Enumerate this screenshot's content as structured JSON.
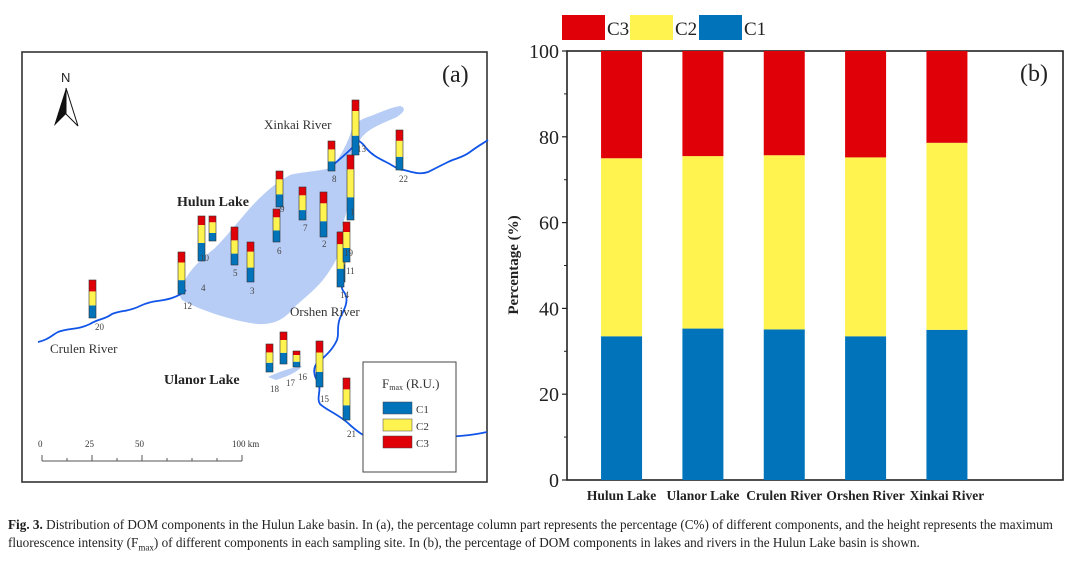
{
  "colors": {
    "C1": "#0073bb",
    "C2": "#fff34f",
    "C3": "#e00008",
    "lake": "#b8cdf6",
    "river": "#1155e8"
  },
  "map": {
    "panel_label": "(a)",
    "north_label": "N",
    "place_labels": {
      "xinkai_river": "Xinkai River",
      "hulun_lake": "Hulun Lake",
      "orshen_river": "Orshen River",
      "crulen_river": "Crulen River",
      "ulanor_lake": "Ulanor Lake"
    },
    "scale_bar": {
      "ticks": [
        "0",
        "25",
        "50",
        "100 km"
      ]
    },
    "legend": {
      "title_main": "F",
      "title_sub": "max",
      "title_unit": " (R.U.)",
      "items": [
        {
          "key": "C1",
          "label": "C1"
        },
        {
          "key": "C2",
          "label": "C2"
        },
        {
          "key": "C3",
          "label": "C3"
        }
      ]
    },
    "sites": [
      {
        "id": "1",
        "c1": 0.35,
        "c2": 0.43,
        "c3": 0.22
      },
      {
        "id": "2",
        "c1": 0.35,
        "c2": 0.4,
        "c3": 0.25
      },
      {
        "id": "3",
        "c1": 0.36,
        "c2": 0.4,
        "c3": 0.24
      },
      {
        "id": "4",
        "c1": 0.4,
        "c2": 0.4,
        "c3": 0.2
      },
      {
        "id": "5",
        "c1": 0.3,
        "c2": 0.35,
        "c3": 0.35
      },
      {
        "id": "6",
        "c1": 0.35,
        "c2": 0.4,
        "c3": 0.25
      },
      {
        "id": "7",
        "c1": 0.3,
        "c2": 0.45,
        "c3": 0.25
      },
      {
        "id": "8",
        "c1": 0.32,
        "c2": 0.4,
        "c3": 0.28
      },
      {
        "id": "9",
        "c1": 0.35,
        "c2": 0.42,
        "c3": 0.23
      },
      {
        "id": "10",
        "c1": 0.32,
        "c2": 0.43,
        "c3": 0.25
      },
      {
        "id": "11",
        "c1": 0.35,
        "c2": 0.45,
        "c3": 0.2
      },
      {
        "id": "12",
        "c1": 0.33,
        "c2": 0.42,
        "c3": 0.25
      },
      {
        "id": "13",
        "c1": 0.35,
        "c2": 0.45,
        "c3": 0.2
      },
      {
        "id": "14",
        "c1": 0.33,
        "c2": 0.45,
        "c3": 0.22
      },
      {
        "id": "15",
        "c1": 0.33,
        "c2": 0.42,
        "c3": 0.25
      },
      {
        "id": "16",
        "c1": 0.33,
        "c2": 0.42,
        "c3": 0.25
      },
      {
        "id": "17",
        "c1": 0.35,
        "c2": 0.4,
        "c3": 0.25
      },
      {
        "id": "18",
        "c1": 0.33,
        "c2": 0.37,
        "c3": 0.3
      },
      {
        "id": "19",
        "c1": 0.35,
        "c2": 0.4,
        "c3": 0.25
      },
      {
        "id": "20",
        "c1": 0.33,
        "c2": 0.37,
        "c3": 0.3
      },
      {
        "id": "21",
        "c1": 0.35,
        "c2": 0.38,
        "c3": 0.27
      },
      {
        "id": "22",
        "c1": 0.33,
        "c2": 0.4,
        "c3": 0.27
      }
    ]
  },
  "chart_data": {
    "type": "bar",
    "stacked": true,
    "panel_label": "(b)",
    "title": "",
    "xlabel": "",
    "ylabel": "Percentage (%)",
    "ylim": [
      0,
      100
    ],
    "yticks": [
      0,
      20,
      40,
      60,
      80,
      100
    ],
    "grid": false,
    "legend_position": "top",
    "legend": [
      "C3",
      "C2",
      "C1"
    ],
    "categories": [
      "Hulun Lake",
      "Ulanor Lake",
      "Crulen River",
      "Orshen River",
      "Xinkai River"
    ],
    "series": [
      {
        "name": "C1",
        "values": [
          33.5,
          35.3,
          35.1,
          33.5,
          35.0
        ]
      },
      {
        "name": "C2",
        "values": [
          41.5,
          40.2,
          40.6,
          41.7,
          43.6
        ]
      },
      {
        "name": "C3",
        "values": [
          25.0,
          24.5,
          24.3,
          24.8,
          21.4
        ]
      }
    ]
  },
  "caption": {
    "fig_number": "Fig. 3.",
    "text_1": " Distribution of DOM components in the Hulun Lake basin. In (a), the percentage column part represents the percentage (C%) of different components, and the height represents the maximum fluorescence intensity (F",
    "text_sub": "max",
    "text_2": ") of different components in each sampling site. In (b), the percentage of DOM components in lakes and rivers in the Hulun Lake basin is shown."
  }
}
